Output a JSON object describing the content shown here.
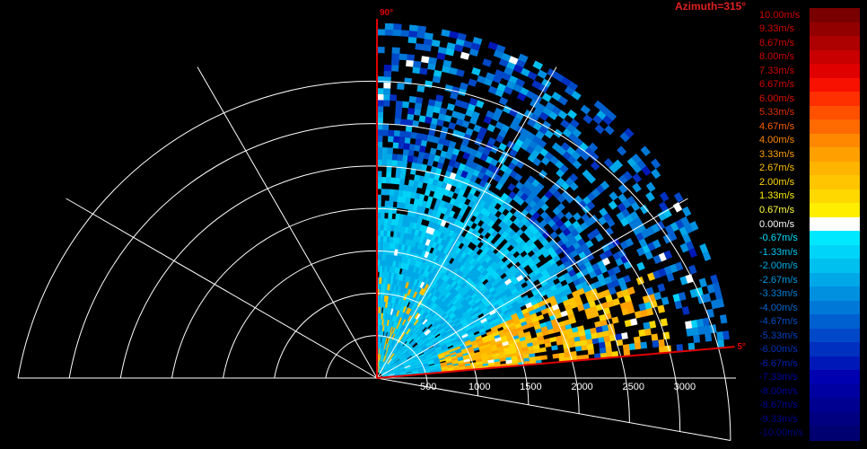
{
  "chart_data": {
    "type": "heatmap",
    "title": "Azimuth=315°",
    "view": "RHI polar sector",
    "angle_labels": [
      "90°",
      "5°"
    ],
    "angle_range": [
      5,
      90
    ],
    "range_tick_labels": [
      "500",
      "1000",
      "1500",
      "2000",
      "2500",
      "3000"
    ],
    "range_max": 3000,
    "colorbar": {
      "unit": "m/s",
      "labels": [
        "10.00m/s",
        "9.33m/s",
        "8.67m/s",
        "8.00m/s",
        "7.33m/s",
        "6.67m/s",
        "6.00m/s",
        "5.33m/s",
        "4.67m/s",
        "4.00m/s",
        "3.33m/s",
        "2.67m/s",
        "2.00m/s",
        "1.33m/s",
        "0.67m/s",
        "0.00m/s",
        "-0.67m/s",
        "-1.33m/s",
        "-2.00m/s",
        "-2.67m/s",
        "-3.33m/s",
        "-4.00m/s",
        "-4.67m/s",
        "-5.33m/s",
        "-6.00m/s",
        "-6.67m/s",
        "-7.33m/s",
        "-8.00m/s",
        "-8.67m/s",
        "-9.33m/s",
        "-10.00m/s"
      ],
      "colors": [
        "#7a0000",
        "#930000",
        "#ad0000",
        "#c80000",
        "#e00000",
        "#f81000",
        "#ff3000",
        "#ff5000",
        "#ff6a00",
        "#ff8800",
        "#ffa000",
        "#ffb400",
        "#ffc600",
        "#ffd800",
        "#ffee00",
        "#ffffff",
        "#00e8ff",
        "#00d4f8",
        "#00c0f0",
        "#00a8e8",
        "#0090e0",
        "#0078d8",
        "#0060d0",
        "#0048c8",
        "#0030c0",
        "#0018b8",
        "#0000b0",
        "#0000a0",
        "#000090",
        "#000080",
        "#000070"
      ],
      "label_colors": [
        "#d00000",
        "#d00000",
        "#d00000",
        "#d00000",
        "#d00000",
        "#d00000",
        "#e01000",
        "#e03000",
        "#ff6000",
        "#ff8800",
        "#ffa000",
        "#ffc000",
        "#ffd800",
        "#ffee00",
        "#ffff40",
        "#ffffff",
        "#00e0ff",
        "#00c8f0",
        "#00b0e8",
        "#0098e0",
        "#0080d8",
        "#0068d0",
        "#0050c8",
        "#0040c0",
        "#0030b8",
        "#0020b0",
        "#0000a8",
        "#0000a0",
        "#000098",
        "#000090",
        "#000088"
      ]
    },
    "grid": true
  }
}
